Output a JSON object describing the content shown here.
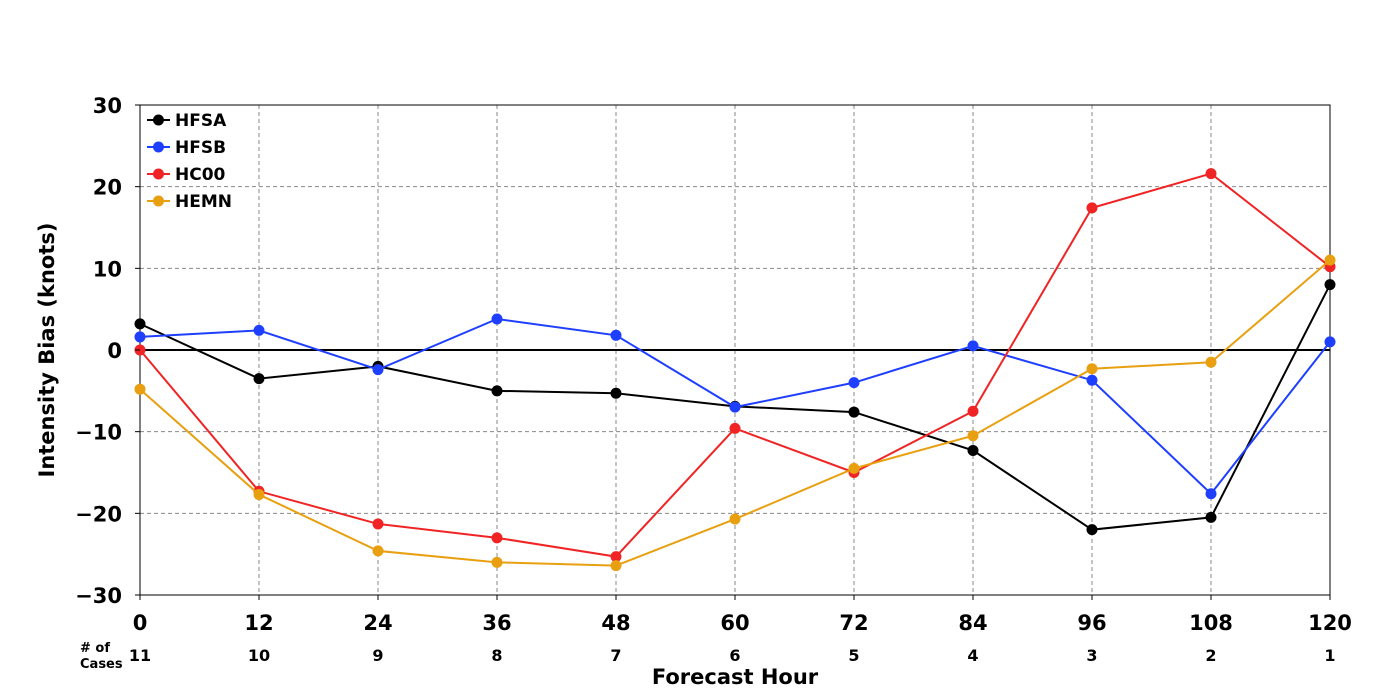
{
  "chart_data": {
    "type": "line",
    "xlabel": "Forecast Hour",
    "ylabel": "Intensity Bias (knots)",
    "x": [
      0,
      12,
      24,
      36,
      48,
      60,
      72,
      84,
      96,
      108,
      120
    ],
    "xlim": [
      0,
      120
    ],
    "ylim": [
      -30,
      30
    ],
    "yticks": [
      30,
      20,
      10,
      0,
      -10,
      -20,
      -30
    ],
    "ytick_labels": [
      "30",
      "20",
      "10",
      "0",
      "−10",
      "−20",
      "−30"
    ],
    "grid": true,
    "zero_line": true,
    "legend_position": "top-left",
    "cases_label": [
      "# of",
      "Cases"
    ],
    "cases": [
      11,
      10,
      9,
      8,
      7,
      6,
      5,
      4,
      3,
      2,
      1
    ],
    "series": [
      {
        "name": "HFSA",
        "color": "#000000",
        "values": [
          3.2,
          -3.5,
          -2.0,
          -5.0,
          -5.3,
          -6.9,
          -7.6,
          -12.3,
          -22.0,
          -20.5,
          8.0
        ]
      },
      {
        "name": "HFSB",
        "color": "#1f3fff",
        "values": [
          1.6,
          2.4,
          -2.4,
          3.8,
          1.8,
          -7.0,
          -4.0,
          0.5,
          -3.7,
          -17.6,
          1.0
        ]
      },
      {
        "name": "HC00",
        "color": "#f02424",
        "values": [
          0.0,
          -17.3,
          -21.3,
          -23.0,
          -25.3,
          -9.6,
          -15.0,
          -7.5,
          17.4,
          21.6,
          10.2
        ]
      },
      {
        "name": "HEMN",
        "color": "#e8a010",
        "values": [
          -4.8,
          -17.7,
          -24.6,
          -26.0,
          -26.4,
          -20.7,
          -14.5,
          -10.5,
          -2.3,
          -1.5,
          11.0
        ]
      }
    ]
  }
}
